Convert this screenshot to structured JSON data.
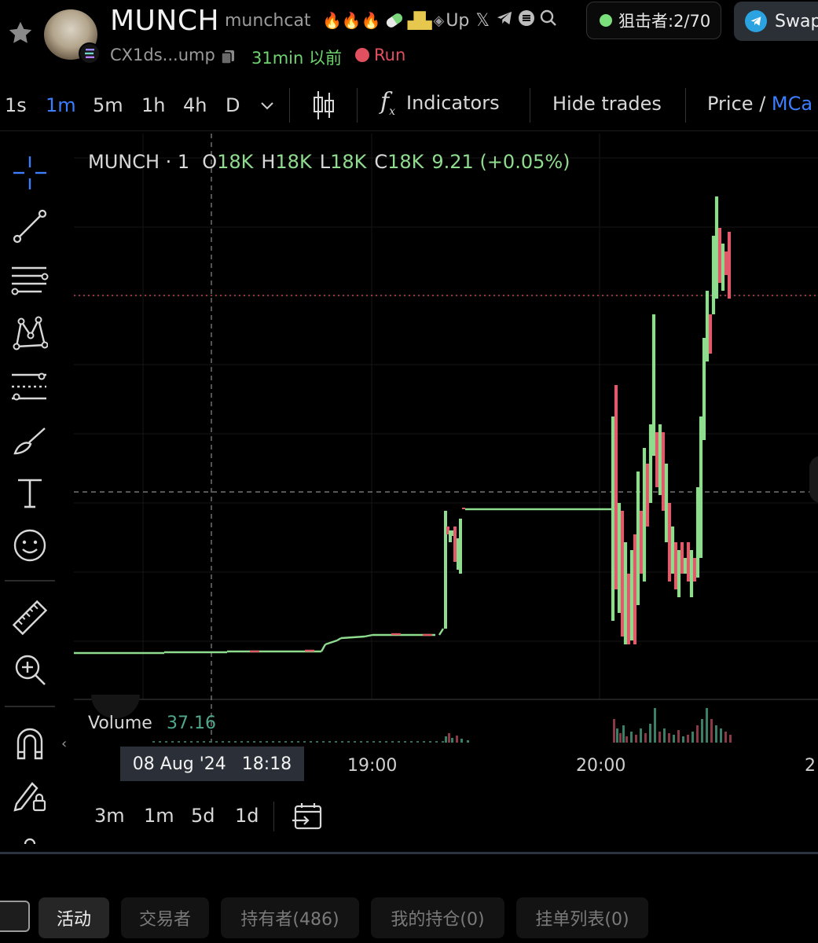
{
  "header": {
    "symbol": "MUNCH",
    "name": "munchcat",
    "tags": {
      "fire": "🔥🔥🔥",
      "up": "Up"
    },
    "address": "CX1ds...ump",
    "created": "31min 以前",
    "platform": "Run",
    "sniper": "狙击者:2/70",
    "swap": "Swap"
  },
  "toolbar": {
    "timeframes": [
      "1s",
      "1m",
      "5m",
      "1h",
      "4h",
      "D"
    ],
    "active_timeframe": "1m",
    "indicators": "Indicators",
    "hide_trades": "Hide trades",
    "price_label": "Price",
    "mcap_label": "MCa",
    "slash": "/"
  },
  "legend": {
    "symbol": "MUNCH · 1",
    "o_label": "O",
    "o": "18K",
    "h_label": "H",
    "h": "18K",
    "l_label": "L",
    "l": "18K",
    "c_label": "C",
    "c": "18K",
    "change": "9.21 (+0.05%)"
  },
  "volume": {
    "label": "Volume",
    "value": "37.16"
  },
  "time_axis": {
    "labels": [
      "19:00",
      "20:00",
      "2"
    ],
    "crosshair_date": "08 Aug '24",
    "crosshair_time": "18:18"
  },
  "ranges": [
    "3m",
    "1m",
    "5d",
    "1d"
  ],
  "bottom_tabs": [
    "活动",
    "交易者",
    "持有者(486)",
    "我的持仓(0)",
    "挂单列表(0)"
  ],
  "colors": {
    "up": "#8fdc8f",
    "down": "#e05a6a",
    "accent": "#3d7eff",
    "bg": "#000000"
  },
  "icons": {
    "star": "star-icon",
    "copy": "copy-icon",
    "crosshair": "crosshair-icon",
    "trendline": "trend-line-icon",
    "fib": "fib-retracement-icon",
    "pattern": "pattern-icon",
    "projection": "projection-icon",
    "brush": "brush-icon",
    "text": "text-icon",
    "emoji": "emoji-icon",
    "ruler": "ruler-icon",
    "zoom": "zoom-in-icon",
    "magnet": "magnet-icon",
    "lock": "lock-drawing-icon"
  }
}
